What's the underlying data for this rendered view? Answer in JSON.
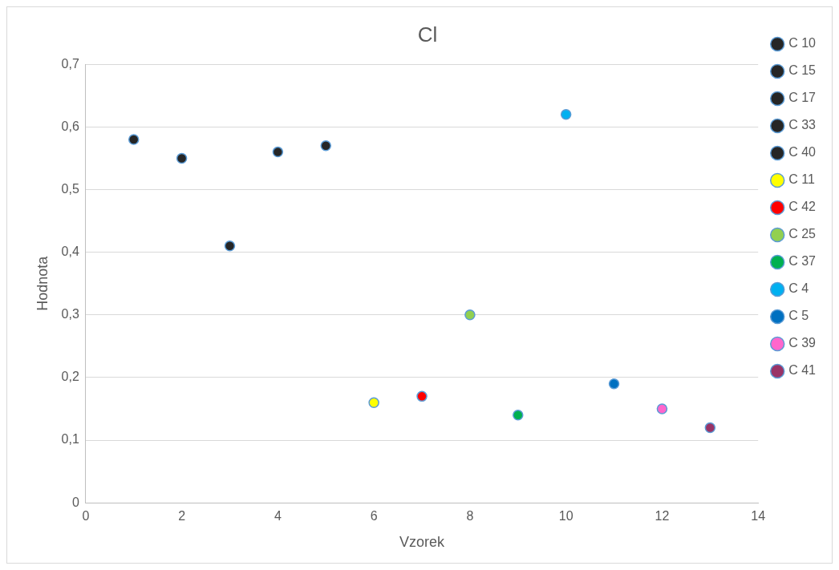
{
  "chart_data": {
    "type": "scatter",
    "title": "Cl",
    "xlabel": "Vzorek",
    "ylabel": "Hodnota",
    "xlim": [
      0,
      14
    ],
    "xticks": [
      0,
      2,
      4,
      6,
      8,
      10,
      12,
      14
    ],
    "ylim": [
      0,
      0.7
    ],
    "yticks": [
      0,
      {
        "value": 0.1,
        "label": "0,1"
      },
      {
        "value": 0.2,
        "label": "0,2"
      },
      {
        "value": 0.3,
        "label": "0,3"
      },
      {
        "value": 0.4,
        "label": "0,4"
      },
      {
        "value": 0.5,
        "label": "0,5"
      },
      {
        "value": 0.6,
        "label": "0,6"
      },
      {
        "value": 0.7,
        "label": "0,7"
      }
    ],
    "grid": "y",
    "legend": "right",
    "marker": "circle",
    "series": [
      {
        "name": "C 10",
        "color": "#262626",
        "x": [
          1
        ],
        "values": [
          0.58
        ]
      },
      {
        "name": "C 15",
        "color": "#262626",
        "x": [
          2
        ],
        "values": [
          0.55
        ]
      },
      {
        "name": "C 17",
        "color": "#262626",
        "x": [
          3
        ],
        "values": [
          0.41
        ]
      },
      {
        "name": "C 33",
        "color": "#262626",
        "x": [
          4
        ],
        "values": [
          0.56
        ]
      },
      {
        "name": "C 40",
        "color": "#262626",
        "x": [
          5
        ],
        "values": [
          0.57
        ]
      },
      {
        "name": "C 11",
        "color": "#ffff00",
        "x": [
          6
        ],
        "values": [
          0.16
        ]
      },
      {
        "name": "C 42",
        "color": "#ff0000",
        "x": [
          7
        ],
        "values": [
          0.17
        ]
      },
      {
        "name": "C 25",
        "color": "#92d050",
        "x": [
          8
        ],
        "values": [
          0.3
        ]
      },
      {
        "name": "C 37",
        "color": "#00b050",
        "x": [
          9
        ],
        "values": [
          0.14
        ]
      },
      {
        "name": "C 4",
        "color": "#00b0f0",
        "x": [
          10
        ],
        "values": [
          0.62
        ]
      },
      {
        "name": "C 5",
        "color": "#0070c0",
        "x": [
          11
        ],
        "values": [
          0.19
        ]
      },
      {
        "name": "C 39",
        "color": "#ff66cc",
        "x": [
          12
        ],
        "values": [
          0.15
        ]
      },
      {
        "name": "C 41",
        "color": "#993366",
        "x": [
          13
        ],
        "values": [
          0.12
        ]
      }
    ]
  }
}
